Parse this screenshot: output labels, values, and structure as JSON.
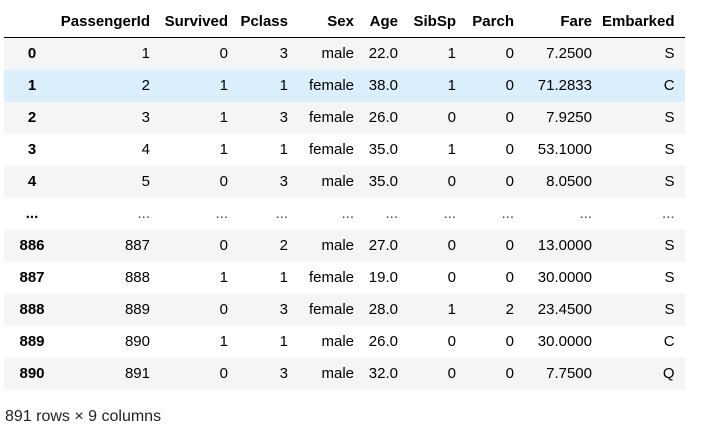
{
  "columns": [
    "",
    "PassengerId",
    "Survived",
    "Pclass",
    "Sex",
    "Age",
    "SibSp",
    "Parch",
    "Fare",
    "Embarked"
  ],
  "rows": [
    [
      "0",
      "1",
      "0",
      "3",
      "male",
      "22.0",
      "1",
      "0",
      "7.2500",
      "S"
    ],
    [
      "1",
      "2",
      "1",
      "1",
      "female",
      "38.0",
      "1",
      "0",
      "71.2833",
      "C"
    ],
    [
      "2",
      "3",
      "1",
      "3",
      "female",
      "26.0",
      "0",
      "0",
      "7.9250",
      "S"
    ],
    [
      "3",
      "4",
      "1",
      "1",
      "female",
      "35.0",
      "1",
      "0",
      "53.1000",
      "S"
    ],
    [
      "4",
      "5",
      "0",
      "3",
      "male",
      "35.0",
      "0",
      "0",
      "8.0500",
      "S"
    ],
    [
      "...",
      "...",
      "...",
      "...",
      "...",
      "...",
      "...",
      "...",
      "...",
      "..."
    ],
    [
      "886",
      "887",
      "0",
      "2",
      "male",
      "27.0",
      "0",
      "0",
      "13.0000",
      "S"
    ],
    [
      "887",
      "888",
      "1",
      "1",
      "female",
      "19.0",
      "0",
      "0",
      "30.0000",
      "S"
    ],
    [
      "888",
      "889",
      "0",
      "3",
      "female",
      "28.0",
      "1",
      "2",
      "23.4500",
      "S"
    ],
    [
      "889",
      "890",
      "1",
      "1",
      "male",
      "26.0",
      "0",
      "0",
      "30.0000",
      "C"
    ],
    [
      "890",
      "891",
      "0",
      "3",
      "male",
      "32.0",
      "0",
      "0",
      "7.7500",
      "Q"
    ]
  ],
  "hovered_row": "1",
  "footer": "891 rows × 9 columns",
  "colors": {
    "striped_row": "#f5f5f5",
    "hover_row": "#dbeefc"
  }
}
